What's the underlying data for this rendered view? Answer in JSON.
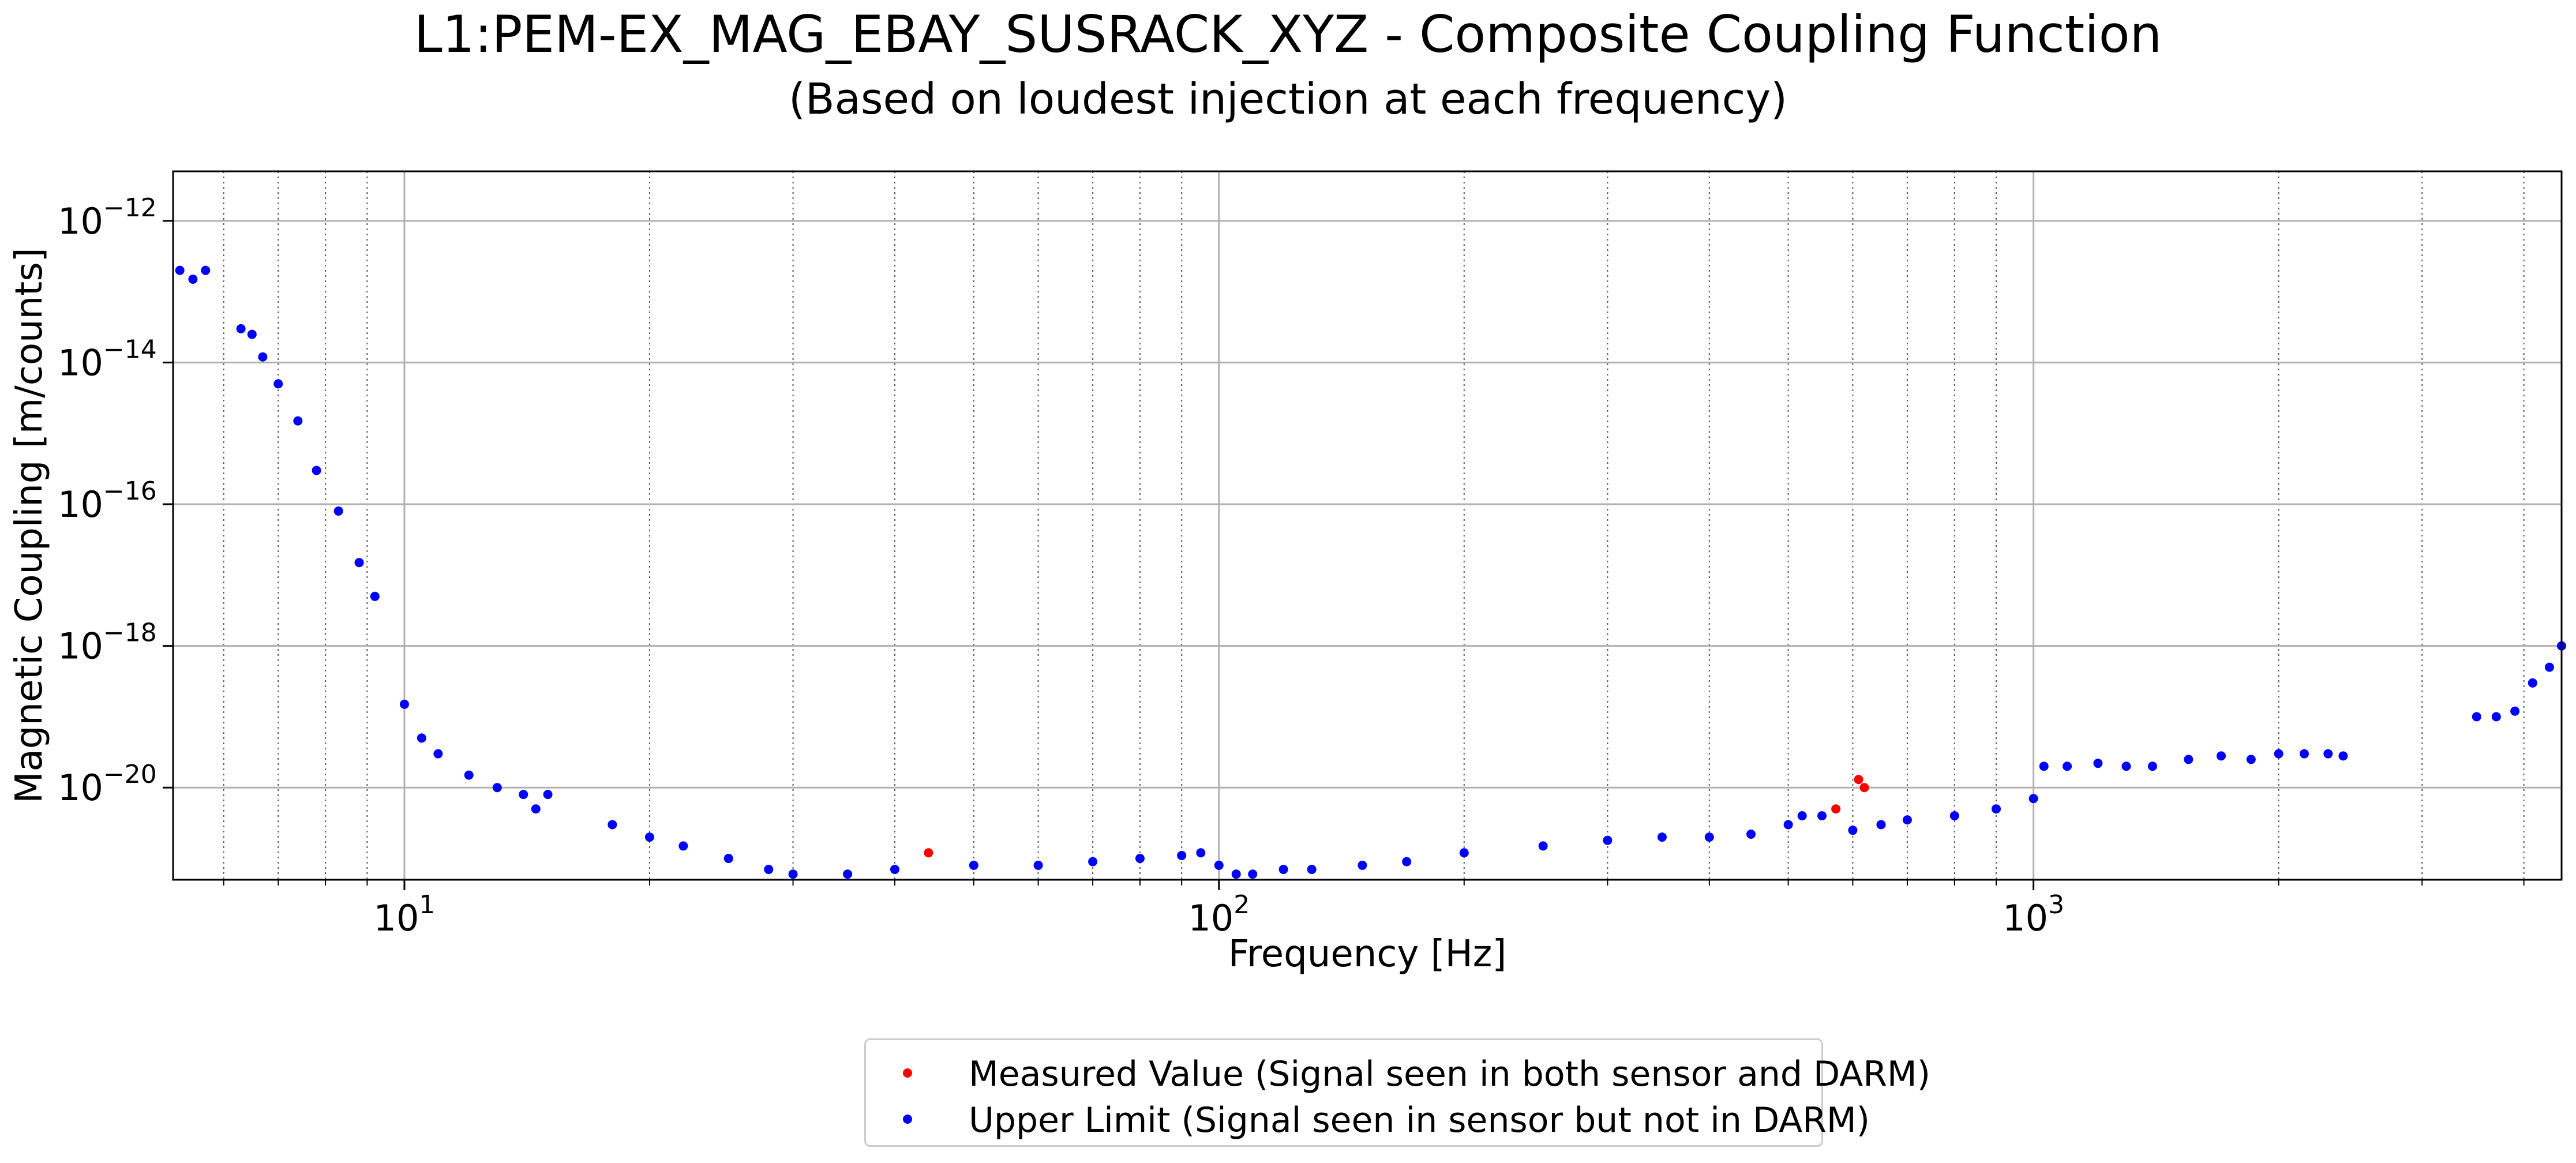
{
  "page": {
    "title": "L1:PEM-EX_MAG_EBAY_SUSRACK_XYZ - Composite Coupling Function",
    "subtitle": "(Based on loudest injection at each frequency)"
  },
  "chart_data": {
    "type": "scatter",
    "title": "L1:PEM-EX_MAG_EBAY_SUSRACK_XYZ - Composite Coupling Function",
    "subtitle": "(Based on loudest injection at each frequency)",
    "xlabel": "Frequency [Hz]",
    "ylabel": "Magnetic Coupling [m/counts]",
    "xscale": "log",
    "yscale": "log",
    "xlim": [
      5.2,
      4450
    ],
    "ylim": [
      5e-22,
      5e-12
    ],
    "x_ticks": [
      {
        "value": 10,
        "base": "10",
        "exp": "1"
      },
      {
        "value": 100,
        "base": "10",
        "exp": "2"
      },
      {
        "value": 1000,
        "base": "10",
        "exp": "3"
      }
    ],
    "y_ticks": [
      {
        "value": 1e-12,
        "base": "10",
        "exp": "−12"
      },
      {
        "value": 1e-14,
        "base": "10",
        "exp": "−14"
      },
      {
        "value": 1e-16,
        "base": "10",
        "exp": "−16"
      },
      {
        "value": 1e-18,
        "base": "10",
        "exp": "−18"
      },
      {
        "value": 1e-20,
        "base": "10",
        "exp": "−20"
      }
    ],
    "grid": {
      "major": true,
      "minor_x": true
    },
    "legend": {
      "placement": "bottom-center, outside plot"
    },
    "series": [
      {
        "name": "Measured Value (Signal seen in both sensor and DARM)",
        "color": "#ff0000",
        "marker": "circle",
        "x": [
          44,
          572,
          610,
          620
        ],
        "y": [
          1.2e-21,
          5e-21,
          1.3e-20,
          1e-20
        ]
      },
      {
        "name": "Upper Limit (Signal seen in sensor but not in DARM)",
        "color": "#0000ff",
        "marker": "circle",
        "x": [
          5.3,
          5.5,
          5.7,
          6.3,
          6.5,
          6.7,
          7.0,
          7.4,
          7.8,
          8.3,
          8.8,
          9.2,
          10.0,
          10.5,
          11.0,
          12.0,
          13.0,
          14.0,
          14.5,
          15.0,
          18.0,
          20.0,
          22.0,
          25.0,
          28.0,
          30.0,
          35.0,
          40.0,
          50.0,
          60.0,
          70.0,
          80.0,
          90.0,
          95.0,
          100,
          105,
          110,
          120,
          130,
          150,
          170,
          200,
          250,
          300,
          350,
          400,
          450,
          500,
          520,
          550,
          600,
          650,
          700,
          800,
          900,
          1000,
          1030,
          1100,
          1200,
          1300,
          1400,
          1550,
          1700,
          1850,
          2000,
          2150,
          2300,
          2400,
          3500,
          3700,
          3900,
          4100,
          4300,
          4450
        ],
        "y": [
          2e-13,
          1.5e-13,
          2e-13,
          3e-14,
          2.5e-14,
          1.2e-14,
          5e-15,
          1.5e-15,
          3e-16,
          8e-17,
          1.5e-17,
          5e-18,
          1.5e-19,
          5e-20,
          3e-20,
          1.5e-20,
          1e-20,
          8e-21,
          5e-21,
          8e-21,
          3e-21,
          2e-21,
          1.5e-21,
          1e-21,
          7e-22,
          6e-22,
          6e-22,
          7e-22,
          8e-22,
          8e-22,
          9e-22,
          1e-21,
          1.1e-21,
          1.2e-21,
          8e-22,
          6e-22,
          6e-22,
          7e-22,
          7e-22,
          8e-22,
          9e-22,
          1.2e-21,
          1.5e-21,
          1.8e-21,
          2e-21,
          2e-21,
          2.2e-21,
          3e-21,
          4e-21,
          4e-21,
          2.5e-21,
          3e-21,
          3.5e-21,
          4e-21,
          5e-21,
          7e-21,
          2e-20,
          2e-20,
          2.2e-20,
          2e-20,
          2e-20,
          2.5e-20,
          2.8e-20,
          2.5e-20,
          3e-20,
          3e-20,
          3e-20,
          2.8e-20,
          1e-19,
          1e-19,
          1.2e-19,
          3e-19,
          5e-19,
          1e-18
        ]
      }
    ]
  }
}
